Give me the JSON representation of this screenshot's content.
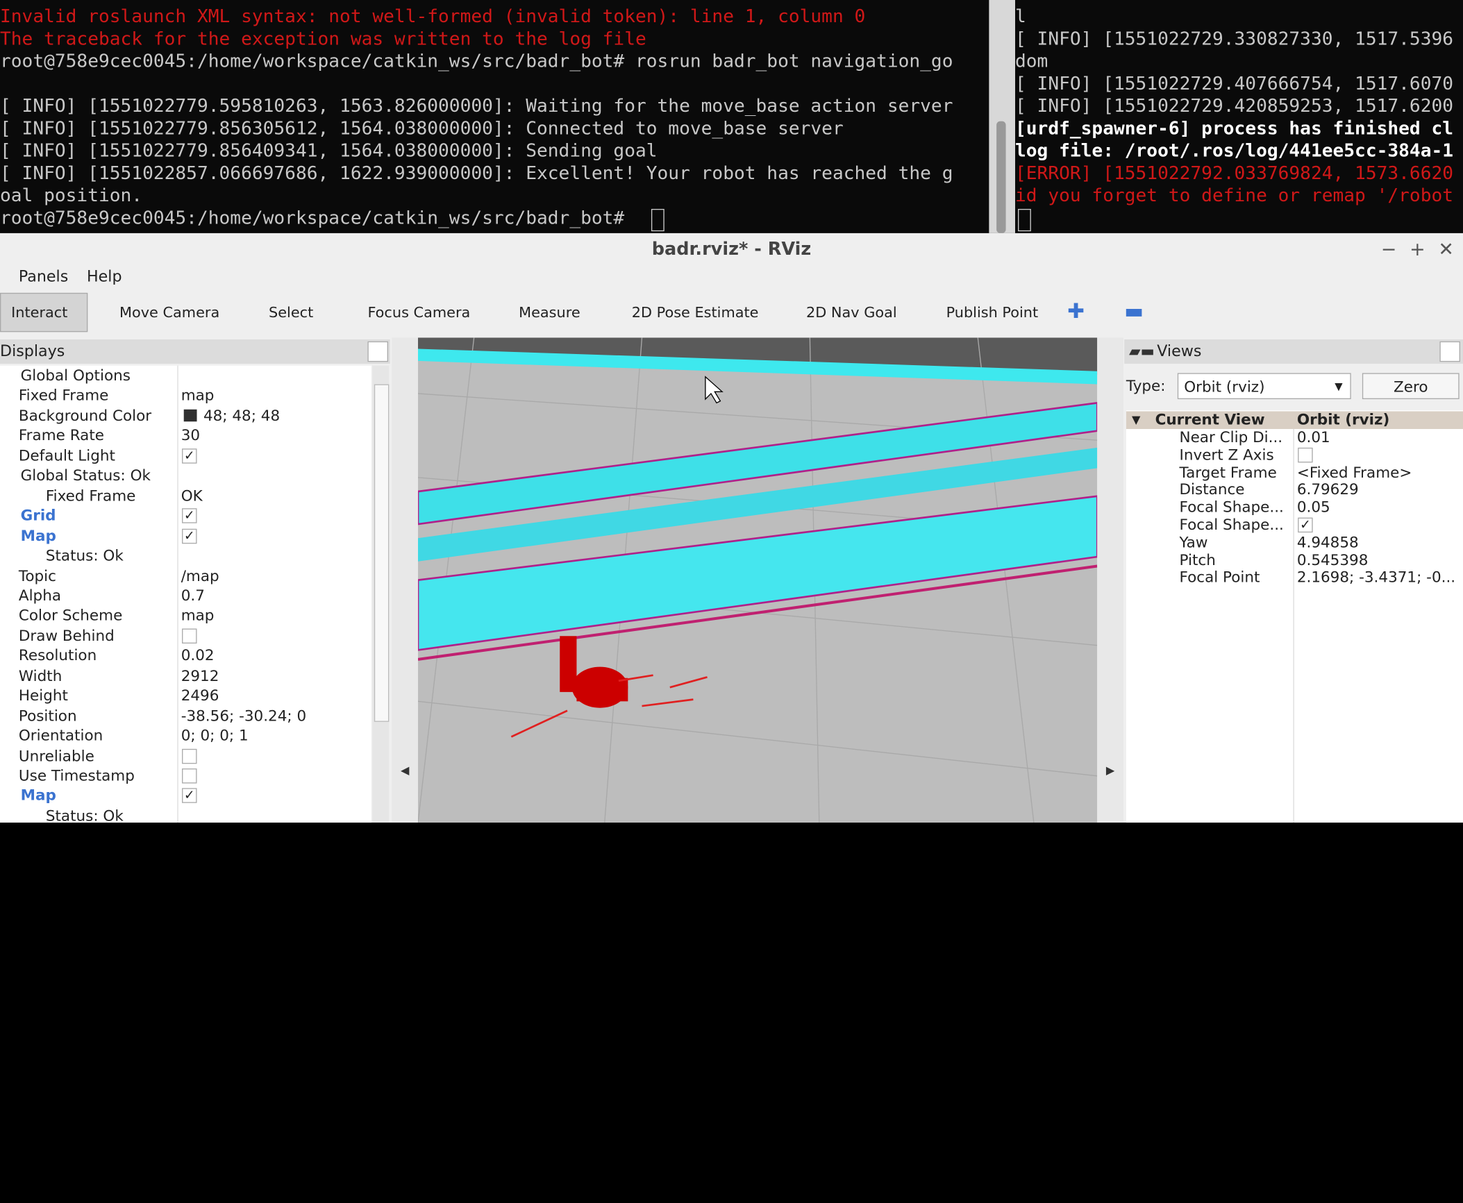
{
  "terminal_left": {
    "lines": [
      {
        "text": "Invalid roslaunch XML syntax: not well-formed (invalid token): line 1, column 0",
        "color": "#d01818"
      },
      {
        "text": "The traceback for the exception was written to the log file",
        "color": "#d01818"
      },
      {
        "text": "root@758e9cec0045:/home/workspace/catkin_ws/src/badr_bot# rosrun badr_bot navigation_go",
        "color": "#c8c8c8"
      },
      {
        "text": "[ INFO] [1551022779.595810263, 1563.826000000]: Waiting for the move_base action server",
        "color": "#c8c8c8"
      },
      {
        "text": "[ INFO] [1551022779.856305612, 1564.038000000]: Connected to move_base server",
        "color": "#c8c8c8"
      },
      {
        "text": "[ INFO] [1551022779.856409341, 1564.038000000]: Sending goal",
        "color": "#c8c8c8"
      },
      {
        "text": "[ INFO] [1551022857.066697686, 1622.939000000]: Excellent! Your robot has reached the g",
        "color": "#c8c8c8"
      },
      {
        "text": "oal position.",
        "color": "#c8c8c8"
      },
      {
        "text": "root@758e9cec0045:/home/workspace/catkin_ws/src/badr_bot#",
        "color": "#c8c8c8"
      }
    ]
  },
  "terminal_right": {
    "lines": [
      {
        "text": "l",
        "color": "#c8c8c8"
      },
      {
        "text": "[ INFO] [1551022729.330827330, 1517.5396",
        "color": "#c8c8c8"
      },
      {
        "text": "dom",
        "color": "#c8c8c8"
      },
      {
        "text": "[ INFO] [1551022729.407666754, 1517.6070",
        "color": "#c8c8c8"
      },
      {
        "text": "[ INFO] [1551022729.420859253, 1517.6200",
        "color": "#c8c8c8"
      },
      {
        "text": "[urdf_spawner-6] process has finished cl",
        "color": "#ffffff"
      },
      {
        "text": "log file: /root/.ros/log/441ee5cc-384a-1",
        "color": "#ffffff"
      },
      {
        "text": "[ERROR] [1551022792.033769824, 1573.6620",
        "color": "#d01818"
      },
      {
        "text": "id you forget to define or remap '/robot",
        "color": "#d01818"
      }
    ]
  },
  "window": {
    "title": "badr.rviz* - RViz",
    "menu": [
      "Panels",
      "Help"
    ],
    "toolbar": [
      "Interact",
      "Move Camera",
      "Select",
      "Focus Camera",
      "Measure",
      "2D Pose Estimate",
      "2D Nav Goal",
      "Publish Point"
    ]
  },
  "displays": {
    "title": "Displays",
    "rows": [
      {
        "name": "Global Options"
      },
      {
        "name": "Fixed Frame",
        "value": "map"
      },
      {
        "name": "Background Color",
        "value": "48; 48; 48"
      },
      {
        "name": "Frame Rate",
        "value": "30"
      },
      {
        "name": "Default Light",
        "checked": true
      },
      {
        "name": "Global Status: Ok"
      },
      {
        "name": "Fixed Frame",
        "value": "OK"
      },
      {
        "name": "Grid",
        "checked": true
      },
      {
        "name": "Map",
        "checked": true
      },
      {
        "name": "Status: Ok"
      },
      {
        "name": "Topic",
        "value": "/map"
      },
      {
        "name": "Alpha",
        "value": "0.7"
      },
      {
        "name": "Color Scheme",
        "value": "map"
      },
      {
        "name": "Draw Behind",
        "checked": false
      },
      {
        "name": "Resolution",
        "value": "0.02"
      },
      {
        "name": "Width",
        "value": "2912"
      },
      {
        "name": "Height",
        "value": "2496"
      },
      {
        "name": "Position",
        "value": "-38.56; -30.24; 0"
      },
      {
        "name": "Orientation",
        "value": "0; 0; 0; 1"
      },
      {
        "name": "Unreliable",
        "checked": false
      },
      {
        "name": "Use Timestamp",
        "checked": false
      },
      {
        "name": "Map",
        "checked": true
      },
      {
        "name": "Status: Ok"
      }
    ]
  },
  "views": {
    "title": "Views",
    "type_label": "Type:",
    "type_value": "Orbit (rviz)",
    "zero_button": "Zero",
    "header": {
      "name": "Current View",
      "value": "Orbit (rviz)"
    },
    "rows": [
      {
        "name": "Near Clip Di...",
        "value": "0.01"
      },
      {
        "name": "Invert Z Axis",
        "checked": false
      },
      {
        "name": "Target Frame",
        "value": "<Fixed Frame>"
      },
      {
        "name": "Distance",
        "value": "6.79629"
      },
      {
        "name": "Focal Shape...",
        "value": "0.05"
      },
      {
        "name": "Focal Shape...",
        "checked": true
      },
      {
        "name": "Yaw",
        "value": "4.94858"
      },
      {
        "name": "Pitch",
        "value": "0.545398"
      },
      {
        "name": "Focal Point",
        "value": "2.1698; -3.4371; -0..."
      }
    ]
  }
}
